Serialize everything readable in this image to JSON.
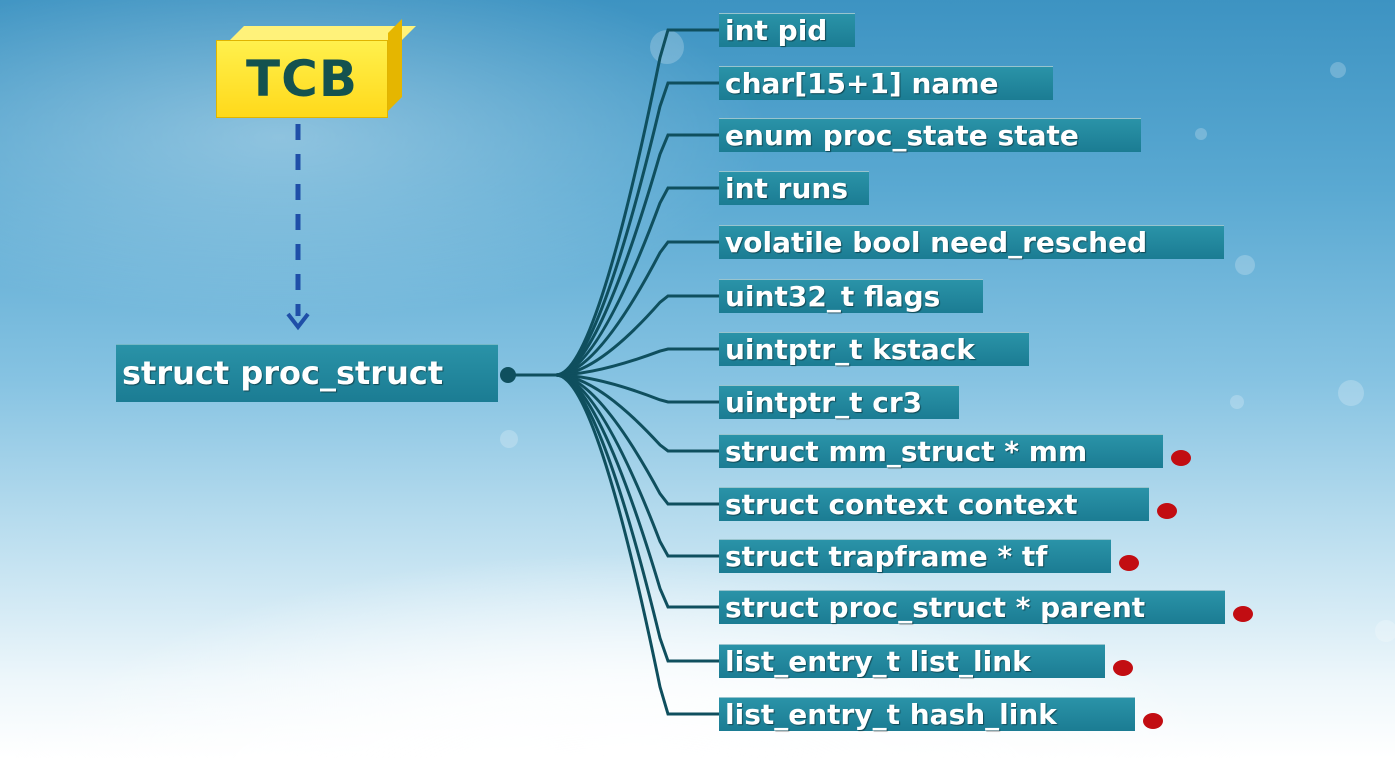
{
  "tcb_label": "TCB",
  "root_label": "struct proc_struct",
  "fields": [
    {
      "label": "int pid",
      "marked": false
    },
    {
      "label": "char[15+1] name",
      "marked": false
    },
    {
      "label": "enum proc_state state",
      "marked": false
    },
    {
      "label": "int runs",
      "marked": false
    },
    {
      "label": "volatile bool need_resched",
      "marked": false
    },
    {
      "label": "uint32_t flags",
      "marked": false
    },
    {
      "label": "uintptr_t kstack",
      "marked": false
    },
    {
      "label": "uintptr_t cr3",
      "marked": false
    },
    {
      "label": "struct mm_struct * mm",
      "marked": true
    },
    {
      "label": "struct context context",
      "marked": true
    },
    {
      "label": "struct trapframe * tf",
      "marked": true
    },
    {
      "label": "struct proc_struct * parent",
      "marked": true
    },
    {
      "label": "list_entry_t list_link",
      "marked": true
    },
    {
      "label": "list_entry_t hash_link",
      "marked": true
    }
  ],
  "colors": {
    "node_fill": "#1f8599",
    "connector": "#0f4f5e",
    "tcb_fill": "#ffe033",
    "tcb_text": "#14524f",
    "arrow": "#1f4fa8",
    "marker": "#c20d12"
  }
}
